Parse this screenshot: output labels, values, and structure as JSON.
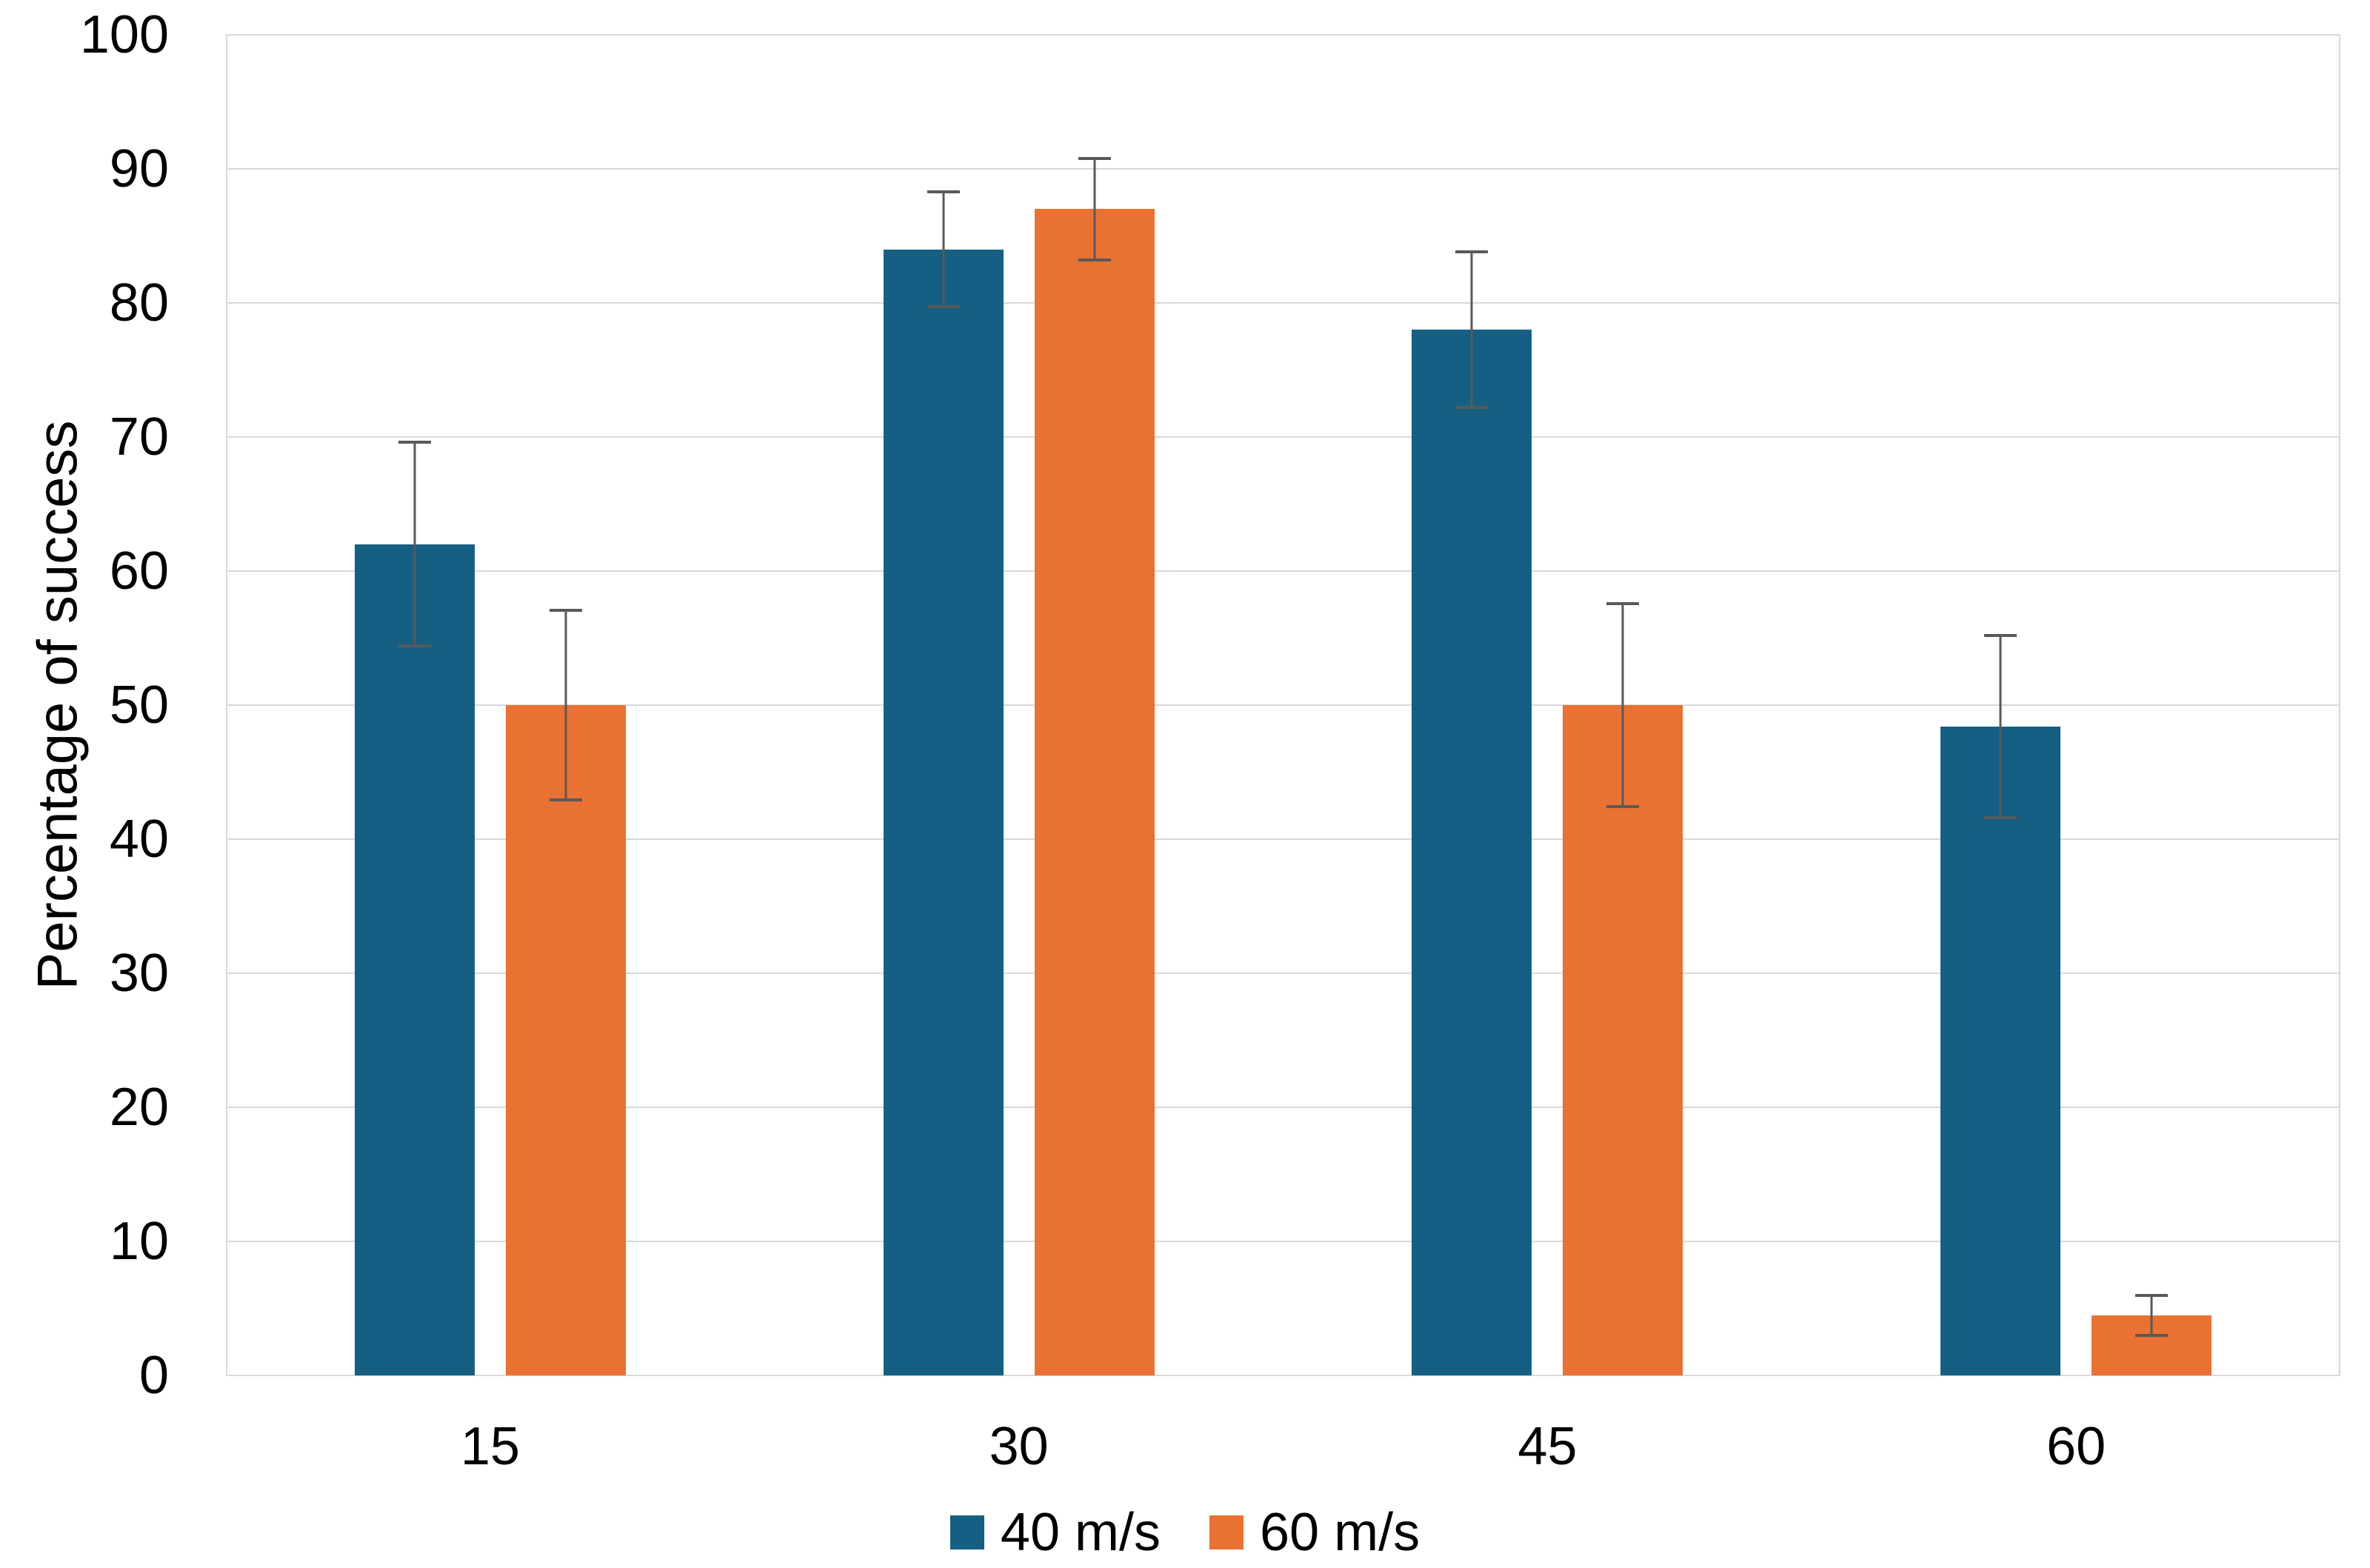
{
  "chart_data": {
    "type": "bar",
    "title": "",
    "xlabel": "",
    "ylabel": "Percentage of success",
    "categories": [
      "15",
      "30",
      "45",
      "60"
    ],
    "series": [
      {
        "name": "40 m/s",
        "color": "#156082",
        "values": [
          62,
          84,
          78,
          48.4
        ],
        "errors": [
          7.7,
          4.4,
          5.9,
          6.9
        ]
      },
      {
        "name": "60 m/s",
        "color": "#E97132",
        "values": [
          50,
          87,
          50,
          4.5
        ],
        "errors": [
          7.2,
          3.9,
          7.7,
          1.6
        ]
      }
    ],
    "ylim": [
      0,
      100
    ],
    "ytick_step": 10,
    "yticks": [
      "0",
      "10",
      "20",
      "30",
      "40",
      "50",
      "60",
      "70",
      "80",
      "90",
      "100"
    ],
    "grid": true,
    "legend_position": "bottom",
    "gridline_color": "#D9D9D9",
    "error_bar_color": "#595959",
    "text_color": "#000000",
    "background": "#FFFFFF"
  }
}
